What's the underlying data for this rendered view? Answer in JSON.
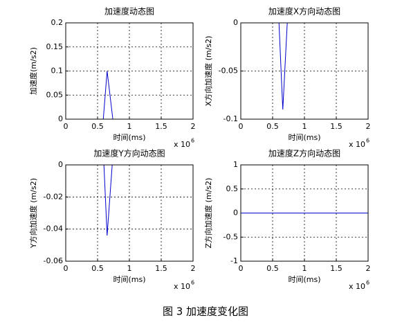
{
  "chart_data": [
    {
      "type": "line",
      "title": "加速度动态图",
      "xlabel": "时间(ms)",
      "ylabel": "加速度(m/s2)",
      "x_scale_label": "x 10",
      "x_scale_exponent": "6",
      "x": [
        0,
        590000,
        650000,
        740000,
        2000000
      ],
      "series": [
        {
          "name": "加速度",
          "color": "#0000cc",
          "values": [
            0,
            0,
            0.1,
            0,
            0
          ]
        }
      ],
      "xlim": [
        0,
        2000000
      ],
      "xticks": [
        0,
        {
          "value": 500000,
          "label": "0.5"
        },
        {
          "value": 1000000,
          "label": "1"
        },
        {
          "value": 1500000,
          "label": "1.5"
        },
        {
          "value": 2000000,
          "label": "2"
        }
      ],
      "ylim": [
        0,
        0.2
      ],
      "yticks": [
        0,
        0.05,
        0.1,
        0.15,
        0.2
      ],
      "grid": true
    },
    {
      "type": "line",
      "title": "加速度X方向动态图",
      "xlabel": "时间(ms)",
      "ylabel": "X方向加速度 (m/s2)",
      "x_scale_label": "x 10",
      "x_scale_exponent": "6",
      "x": [
        0,
        600000,
        660000,
        730000,
        2000000
      ],
      "series": [
        {
          "name": "X方向加速度",
          "color": "#0000cc",
          "values": [
            0,
            0,
            -0.09,
            0,
            0
          ]
        }
      ],
      "xlim": [
        0,
        2000000
      ],
      "xticks": [
        0,
        {
          "value": 500000,
          "label": "0.5"
        },
        {
          "value": 1000000,
          "label": "1"
        },
        {
          "value": 1500000,
          "label": "1.5"
        },
        {
          "value": 2000000,
          "label": "2"
        }
      ],
      "ylim": [
        -0.1,
        0
      ],
      "yticks": [
        -0.1,
        -0.05,
        0
      ],
      "grid": true
    },
    {
      "type": "line",
      "title": "加速度Y方向动态图",
      "xlabel": "时间(ms)",
      "ylabel": "Y方向加速度 (m/s2)",
      "x_scale_label": "x 10",
      "x_scale_exponent": "6",
      "x": [
        0,
        600000,
        650000,
        730000,
        2000000
      ],
      "series": [
        {
          "name": "Y方向加速度",
          "color": "#0000cc",
          "values": [
            0,
            0,
            -0.044,
            0,
            0
          ]
        }
      ],
      "xlim": [
        0,
        2000000
      ],
      "xticks": [
        0,
        {
          "value": 500000,
          "label": "0.5"
        },
        {
          "value": 1000000,
          "label": "1"
        },
        {
          "value": 1500000,
          "label": "1.5"
        },
        {
          "value": 2000000,
          "label": "2"
        }
      ],
      "ylim": [
        -0.06,
        0
      ],
      "yticks": [
        -0.06,
        -0.04,
        -0.02,
        0
      ],
      "grid": true
    },
    {
      "type": "line",
      "title": "加速度Z方向动态图",
      "xlabel": "时间(ms)",
      "ylabel": "Z方向加速度 (m/s2)",
      "x_scale_label": "x 10",
      "x_scale_exponent": "6",
      "x": [
        0,
        2000000
      ],
      "series": [
        {
          "name": "Z方向加速度",
          "color": "#0000cc",
          "values": [
            0,
            0
          ]
        }
      ],
      "xlim": [
        0,
        2000000
      ],
      "xticks": [
        0,
        {
          "value": 500000,
          "label": "0.5"
        },
        {
          "value": 1000000,
          "label": "1"
        },
        {
          "value": 1500000,
          "label": "1.5"
        },
        {
          "value": 2000000,
          "label": "2"
        }
      ],
      "ylim": [
        -1,
        1
      ],
      "yticks": [
        -1,
        -0.5,
        0,
        0.5,
        1
      ],
      "grid": true
    }
  ],
  "caption": "图 3  加速度变化图"
}
